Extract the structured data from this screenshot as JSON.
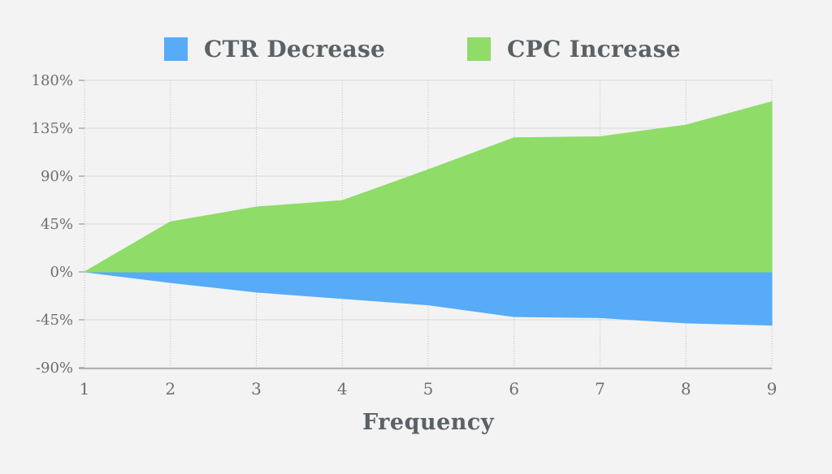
{
  "background": "#f2f3f2",
  "text_colors": {
    "legend": "#5c6166",
    "ticks": "#6b7075",
    "axis_title": "#5c6166"
  },
  "legend": {
    "items": [
      {
        "label": "CTR Decrease",
        "color": "#57abf7"
      },
      {
        "label": "CPC Increase",
        "color": "#8fdc68"
      }
    ]
  },
  "chart_data": {
    "type": "area",
    "title": "",
    "xlabel": "Frequency",
    "ylabel": "",
    "x": [
      1,
      2,
      3,
      4,
      5,
      6,
      7,
      8,
      9
    ],
    "xtick_labels": [
      "1",
      "2",
      "3",
      "4",
      "5",
      "6",
      "7",
      "8",
      "9"
    ],
    "xlim": [
      1,
      9
    ],
    "ylim": [
      -90,
      180
    ],
    "ytick_values": [
      180,
      135,
      90,
      45,
      0,
      -45,
      -90
    ],
    "ytick_labels": [
      "180%",
      "135%",
      "90%",
      "45%",
      "0%",
      "-45%",
      "-90%"
    ],
    "grid": true,
    "legend_position": "top",
    "series": [
      {
        "name": "CTR Decrease",
        "color": "#57abf7",
        "baseline": 0,
        "values": [
          0,
          -10,
          -19,
          -25,
          -31,
          -42,
          -43,
          -48,
          -50
        ]
      },
      {
        "name": "CPC Increase",
        "color": "#8fdc68",
        "baseline": 0,
        "values": [
          0,
          47,
          61,
          67,
          96,
          126,
          127,
          138,
          160
        ]
      }
    ]
  }
}
